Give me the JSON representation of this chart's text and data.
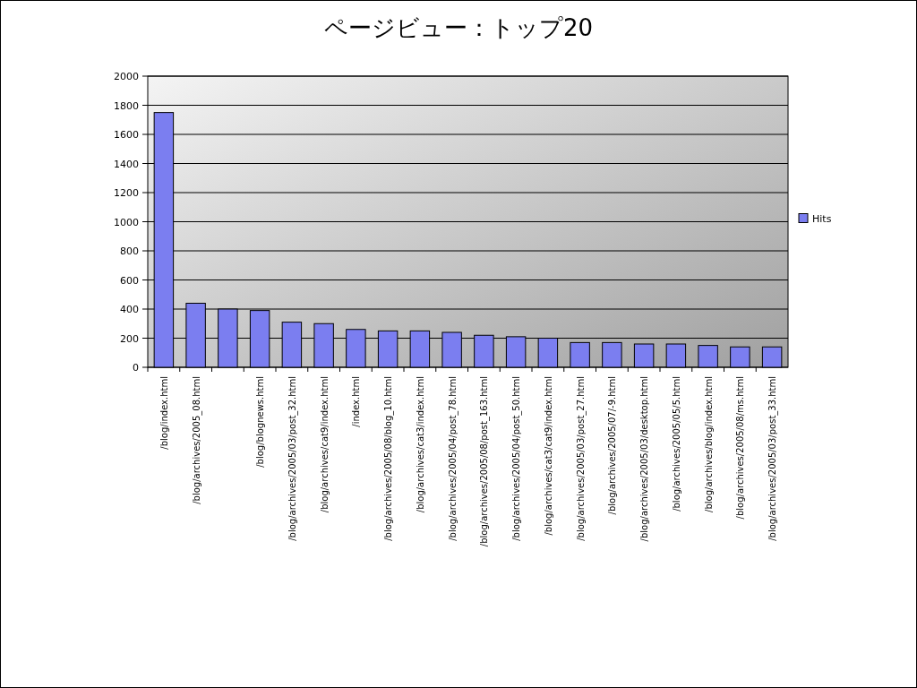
{
  "chart_data": {
    "type": "bar",
    "title": "ページビュー：トップ20",
    "categories": [
      "/blog/index.html",
      "/blog/archives/2005_08.html",
      null,
      "/blog/blognews.html",
      "/blog/archives/2005/03/post_32.html",
      "/blog/archives/cat9/index.html",
      "/index.html",
      "/blog/archives/2005/08/blog_10.html",
      "/blog/archives/cat3/index.html",
      "/blog/archives/2005/04/post_78.html",
      "/blog/archives/2005/08/post_163.html",
      "/blog/archives/2005/04/post_50.html",
      "/blog/archives/cat3/cat9/index.html",
      "/blog/archives/2005/03/post_27.html",
      "/blog/archives/2005/07/-9.html",
      "/blog/archives/2005/03/desktop.html",
      "/blog/archives/2005/05/5.html",
      "/blog/archives/blog/index.html",
      "/blog/archives/2005/08/ms.html",
      "/blog/archives/2005/03/post_33.html"
    ],
    "series": [
      {
        "name": "Hits",
        "color": "#7b7ef0",
        "values": [
          1750,
          440,
          400,
          390,
          310,
          300,
          260,
          250,
          250,
          240,
          220,
          210,
          200,
          170,
          170,
          160,
          160,
          150,
          140,
          140
        ]
      }
    ],
    "ylim": [
      0,
      2000
    ],
    "yticks": [
      0,
      200,
      400,
      600,
      800,
      1000,
      1200,
      1400,
      1600,
      1800,
      2000
    ],
    "grid": "y",
    "legend": "right"
  }
}
